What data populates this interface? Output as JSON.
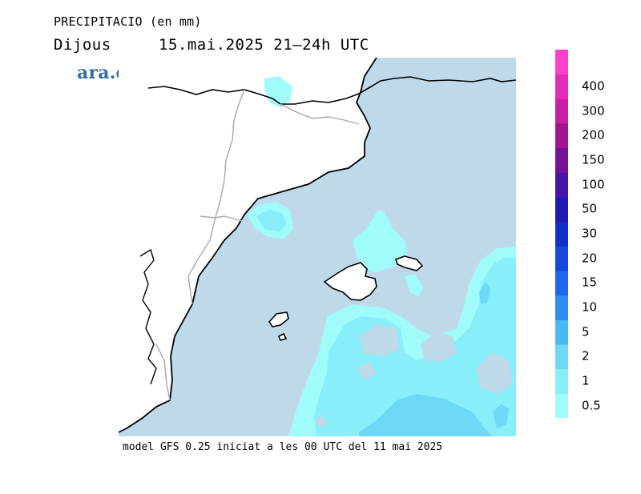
{
  "header": {
    "title": "PRECIPITACIO (en mm)",
    "day": "Dijous",
    "datetime": "15.mai.2025 21–24h UTC"
  },
  "logo": {
    "text": "ara.cat",
    "color": "#2f6f9e"
  },
  "footer": {
    "text": "model GFS 0.25 iniciat a les 00 UTC del 11 mai 2025"
  },
  "legend": {
    "unit_hint": "mm",
    "levels": [
      {
        "label": "0.5",
        "color": "#9ffcfb"
      },
      {
        "label": "1",
        "color": "#88eefa"
      },
      {
        "label": "2",
        "color": "#6fd8f6"
      },
      {
        "label": "5",
        "color": "#4ab8f2"
      },
      {
        "label": "10",
        "color": "#2f8cf0"
      },
      {
        "label": "15",
        "color": "#1e66ee"
      },
      {
        "label": "20",
        "color": "#1748dc"
      },
      {
        "label": "30",
        "color": "#1230c8"
      },
      {
        "label": "50",
        "color": "#2218b6"
      },
      {
        "label": "100",
        "color": "#4614a8"
      },
      {
        "label": "150",
        "color": "#76129a"
      },
      {
        "label": "200",
        "color": "#a0148e"
      },
      {
        "label": "300",
        "color": "#c81ea6"
      },
      {
        "label": "400",
        "color": "#e42ab8"
      },
      {
        "label": "",
        "color": "#fc40c8"
      }
    ]
  },
  "map": {
    "sea_color": "#bed9ea",
    "land_color": "#ffffff",
    "coast_color": "#000000",
    "border_color": "#a8a8a8"
  }
}
